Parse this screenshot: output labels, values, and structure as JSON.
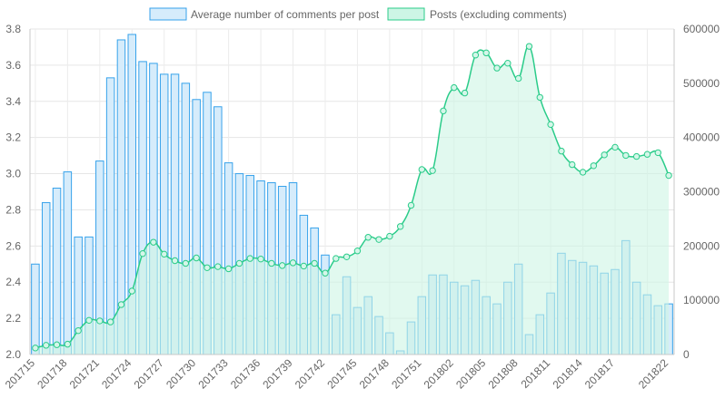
{
  "chart_data": {
    "type": "bar",
    "x_tick_labels": [
      "201715",
      "201718",
      "201721",
      "201724",
      "201727",
      "201730",
      "201733",
      "201736",
      "201739",
      "201742",
      "201745",
      "201748",
      "201751",
      "201802",
      "201805",
      "201808",
      "201811",
      "201814",
      "201817",
      "201822"
    ],
    "series": [
      {
        "name": "Average number of comments per post",
        "type": "bar",
        "axis": "left",
        "color": "#36a2eb",
        "fill": "#d6ecfb",
        "values": [
          2.5,
          2.84,
          2.92,
          3.01,
          2.65,
          2.65,
          3.07,
          3.53,
          3.74,
          3.77,
          3.62,
          3.61,
          3.55,
          3.55,
          3.5,
          3.41,
          3.45,
          3.37,
          3.06,
          3.0,
          2.99,
          2.96,
          2.95,
          2.93,
          2.95,
          2.77,
          2.7,
          2.55,
          2.22,
          2.43,
          2.26,
          2.32,
          2.21,
          2.12,
          2.02,
          2.18,
          2.32,
          2.44,
          2.44,
          2.4,
          2.38,
          2.41,
          2.32,
          2.28,
          2.4,
          2.5,
          2.11,
          2.22,
          2.34,
          2.56,
          2.52,
          2.51,
          2.49,
          2.45,
          2.47,
          2.63,
          2.4,
          2.33,
          2.27,
          2.28
        ]
      },
      {
        "name": "Posts (excluding comments)",
        "type": "area",
        "axis": "right",
        "color": "#2bcc8a",
        "fill": "#cdf5e5",
        "values": [
          12000,
          17000,
          18000,
          19000,
          44000,
          63000,
          62000,
          60000,
          92000,
          117000,
          186000,
          207000,
          185000,
          173000,
          168000,
          178000,
          160000,
          162000,
          158000,
          168000,
          177000,
          176000,
          168000,
          164000,
          169000,
          163000,
          168000,
          150000,
          177000,
          180000,
          191000,
          216000,
          212000,
          218000,
          236000,
          275000,
          341000,
          339000,
          449000,
          492000,
          482000,
          552000,
          556000,
          528000,
          537000,
          509000,
          568000,
          474000,
          424000,
          375000,
          350000,
          336000,
          348000,
          368000,
          382000,
          367000,
          365000,
          369000,
          372000,
          330000
        ]
      }
    ],
    "y_left": {
      "min": 2.0,
      "max": 3.8,
      "ticks": [
        "2.0",
        "2.2",
        "2.4",
        "2.6",
        "2.8",
        "3.0",
        "3.2",
        "3.4",
        "3.6",
        "3.8"
      ]
    },
    "y_right": {
      "min": 0,
      "max": 600000,
      "ticks": [
        "0",
        "100000",
        "200000",
        "300000",
        "400000",
        "500000",
        "600000"
      ]
    },
    "grid": true,
    "legend_position": "top"
  },
  "legend": {
    "bar_label": "Average number of comments per post",
    "area_label": "Posts (excluding comments)"
  }
}
